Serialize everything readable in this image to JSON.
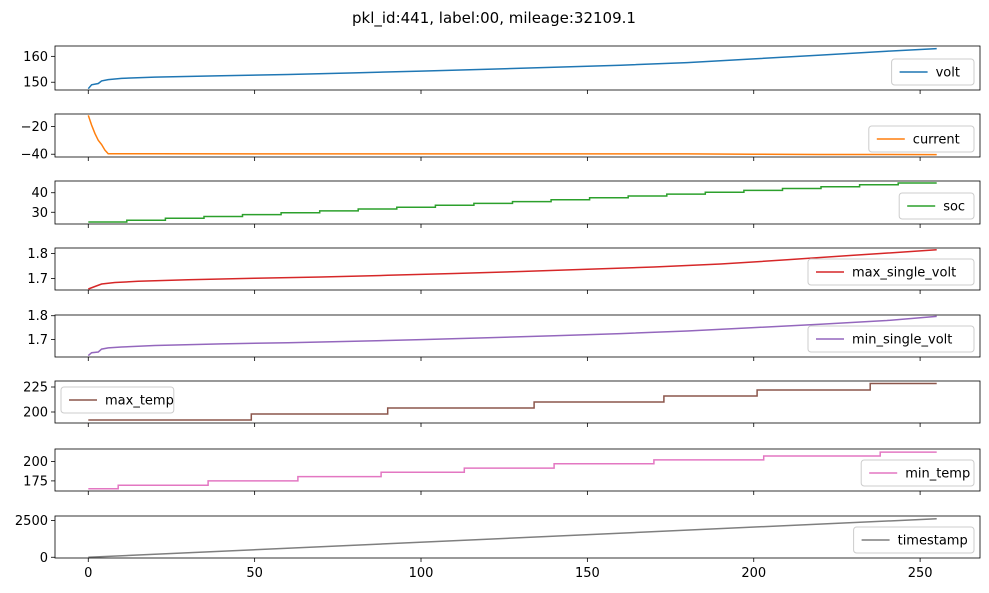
{
  "figure": {
    "title": "pkl_id:441, label:00, mileage:32109.1"
  },
  "chart_data": {
    "type": "line",
    "title": "pkl_id:441, label:00, mileage:32109.1",
    "shared_x": {
      "xlim": [
        -10,
        268
      ],
      "ticks": [
        0,
        50,
        100,
        150,
        200,
        250
      ],
      "tick_labels": [
        "0",
        "50",
        "100",
        "150",
        "200",
        "250"
      ],
      "x_start": 0,
      "x_end": 255
    },
    "grid": false,
    "series": [
      {
        "name": "volt",
        "color": "#1f77b4",
        "legend_loc": "right",
        "ylim": [
          147,
          164
        ],
        "yticks": [
          150,
          160
        ],
        "ytick_labels": [
          "150",
          "160"
        ],
        "points": [
          [
            0,
            147.5
          ],
          [
            1,
            149
          ],
          [
            3,
            149.5
          ],
          [
            4,
            150.5
          ],
          [
            6,
            151
          ],
          [
            10,
            151.5
          ],
          [
            20,
            152
          ],
          [
            40,
            152.5
          ],
          [
            60,
            153
          ],
          [
            80,
            153.6
          ],
          [
            100,
            154.3
          ],
          [
            120,
            155
          ],
          [
            140,
            155.8
          ],
          [
            160,
            156.6
          ],
          [
            180,
            157.6
          ],
          [
            200,
            159
          ],
          [
            220,
            160.5
          ],
          [
            240,
            162
          ],
          [
            255,
            163
          ]
        ]
      },
      {
        "name": "current",
        "color": "#ff7f0e",
        "legend_loc": "right",
        "ylim": [
          -42,
          -11
        ],
        "yticks": [
          -20,
          -40
        ],
        "ytick_labels": [
          "−20",
          "−40"
        ],
        "points": [
          [
            0,
            -12
          ],
          [
            1,
            -19
          ],
          [
            2,
            -25
          ],
          [
            3,
            -30
          ],
          [
            4,
            -33
          ],
          [
            5,
            -37
          ],
          [
            6,
            -39.7
          ],
          [
            20,
            -39.7
          ],
          [
            180,
            -39.8
          ],
          [
            200,
            -40
          ],
          [
            220,
            -40.2
          ],
          [
            255,
            -40.3
          ]
        ]
      },
      {
        "name": "soc",
        "color": "#2ca02c",
        "legend_loc": "right",
        "step": true,
        "ylim": [
          24,
          46
        ],
        "yticks": [
          30,
          40
        ],
        "ytick_labels": [
          "30",
          "40"
        ],
        "points": [
          [
            0,
            25
          ],
          [
            255,
            45
          ]
        ]
      },
      {
        "name": "max_single_volt",
        "color": "#d62728",
        "legend_loc": "right",
        "ylim": [
          1.654,
          1.822
        ],
        "yticks": [
          1.7,
          1.8
        ],
        "ytick_labels": [
          "1.7",
          "1.8"
        ],
        "points": [
          [
            0,
            1.658
          ],
          [
            2,
            1.668
          ],
          [
            4,
            1.678
          ],
          [
            8,
            1.684
          ],
          [
            15,
            1.689
          ],
          [
            30,
            1.695
          ],
          [
            50,
            1.701
          ],
          [
            70,
            1.706
          ],
          [
            90,
            1.713
          ],
          [
            110,
            1.72
          ],
          [
            130,
            1.728
          ],
          [
            150,
            1.737
          ],
          [
            170,
            1.746
          ],
          [
            190,
            1.758
          ],
          [
            210,
            1.775
          ],
          [
            230,
            1.793
          ],
          [
            255,
            1.815
          ]
        ]
      },
      {
        "name": "min_single_volt",
        "color": "#9467bd",
        "legend_loc": "right",
        "ylim": [
          1.627,
          1.803
        ],
        "yticks": [
          1.7,
          1.8
        ],
        "ytick_labels": [
          "1.7",
          "1.8"
        ],
        "points": [
          [
            0,
            1.633
          ],
          [
            1,
            1.645
          ],
          [
            3,
            1.648
          ],
          [
            4,
            1.66
          ],
          [
            6,
            1.665
          ],
          [
            10,
            1.669
          ],
          [
            20,
            1.675
          ],
          [
            40,
            1.682
          ],
          [
            60,
            1.687
          ],
          [
            80,
            1.693
          ],
          [
            100,
            1.7
          ],
          [
            120,
            1.708
          ],
          [
            140,
            1.716
          ],
          [
            160,
            1.725
          ],
          [
            180,
            1.736
          ],
          [
            200,
            1.75
          ],
          [
            220,
            1.764
          ],
          [
            240,
            1.78
          ],
          [
            255,
            1.797
          ]
        ]
      },
      {
        "name": "max_temp",
        "color": "#8c564b",
        "legend_loc": "left",
        "step": true,
        "ylim": [
          189,
          231
        ],
        "yticks": [
          200,
          225
        ],
        "ytick_labels": [
          "200",
          "225"
        ],
        "points": [
          [
            0,
            192
          ],
          [
            49,
            192
          ],
          [
            49,
            198
          ],
          [
            90,
            198
          ],
          [
            90,
            204
          ],
          [
            134,
            204
          ],
          [
            134,
            210
          ],
          [
            173,
            210
          ],
          [
            173,
            216
          ],
          [
            201,
            216
          ],
          [
            201,
            222
          ],
          [
            235,
            222
          ],
          [
            235,
            228.5
          ],
          [
            255,
            228.5
          ]
        ]
      },
      {
        "name": "min_temp",
        "color": "#e377c2",
        "legend_loc": "right",
        "step": true,
        "ylim": [
          162,
          216
        ],
        "yticks": [
          175,
          200
        ],
        "ytick_labels": [
          "175",
          "200"
        ],
        "points": [
          [
            0,
            165
          ],
          [
            9,
            165
          ],
          [
            9,
            169.5
          ],
          [
            36,
            169.5
          ],
          [
            36,
            175
          ],
          [
            63,
            175
          ],
          [
            63,
            180.5
          ],
          [
            88,
            180.5
          ],
          [
            88,
            186
          ],
          [
            113,
            186
          ],
          [
            113,
            191.5
          ],
          [
            140,
            191.5
          ],
          [
            140,
            197
          ],
          [
            170,
            197
          ],
          [
            170,
            202
          ],
          [
            203,
            202
          ],
          [
            203,
            207
          ],
          [
            238,
            207
          ],
          [
            238,
            212
          ],
          [
            255,
            212
          ]
        ]
      },
      {
        "name": "timestamp",
        "color": "#7f7f7f",
        "legend_loc": "right",
        "ylim": [
          -50,
          2800
        ],
        "yticks": [
          0,
          2500
        ],
        "ytick_labels": [
          "0",
          "2500"
        ],
        "points": [
          [
            0,
            0
          ],
          [
            255,
            2610
          ]
        ]
      }
    ]
  }
}
